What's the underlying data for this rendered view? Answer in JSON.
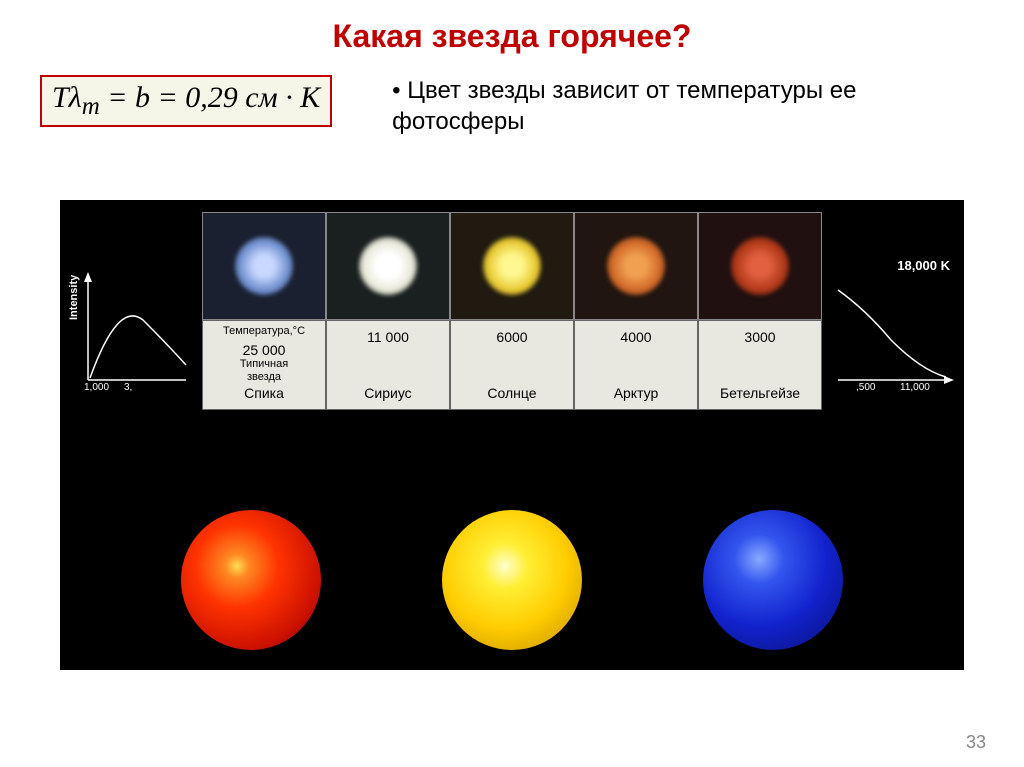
{
  "title": {
    "text": "Какая звезда горячее?",
    "color": "#c00000"
  },
  "formula": {
    "html": "Tλ<sub>m</sub> = b = 0,29 см · К",
    "border_color": "#c00000",
    "background": "#f5f5e8"
  },
  "bullet": "Цвет звезды зависит от температуры ее фотосферы",
  "table": {
    "header_labels": [
      "Температура,°C",
      "25 000",
      "Типичная",
      "звезда"
    ],
    "stars": [
      {
        "color": "radial-gradient(circle, #c8d8ff 25%, #7090d0 60%, #1a2030 100%)",
        "bg": "#1a2030",
        "temp": "25 000",
        "name": "Спика",
        "is_first": true
      },
      {
        "color": "radial-gradient(circle, #ffffff 30%, #e8e8d8 60%, #1a2020 100%)",
        "bg": "#1a2020",
        "temp": "11 000",
        "name": "Сириус"
      },
      {
        "color": "radial-gradient(circle, #fff890 25%, #e8c830 60%, #201a10 100%)",
        "bg": "#201a10",
        "temp": "6000",
        "name": "Солнце"
      },
      {
        "color": "radial-gradient(circle, #f0a050 25%, #d06828 60%, #201510 100%)",
        "bg": "#201510",
        "temp": "4000",
        "name": "Арктур"
      },
      {
        "color": "radial-gradient(circle, #e06040 25%, #b03818 60%, #201010 100%)",
        "bg": "#201010",
        "temp": "3000",
        "name": "Бетельгейзе"
      }
    ]
  },
  "left_axis": {
    "label": "Intensity",
    "ticks": [
      "1,000",
      "3,"
    ]
  },
  "right_axis": {
    "label": "18,000 K",
    "ticks": [
      ",500",
      "11,000"
    ]
  },
  "big_stars": [
    {
      "gradient": "radial-gradient(circle at 40% 40%, #ffdd55 0%, #ff8822 10%, #ff3300 35%, #cc1100 70%, #660000 100%)"
    },
    {
      "gradient": "radial-gradient(circle at 45% 40%, #ffffcc 0%, #ffee33 20%, #ffcc00 55%, #cc9900 90%, #665500 100%)"
    },
    {
      "gradient": "radial-gradient(circle at 40% 35%, #88aaff 0%, #3355ee 20%, #1122cc 55%, #0a1488 90%, #050a44 100%)"
    }
  ],
  "page_number": "33"
}
